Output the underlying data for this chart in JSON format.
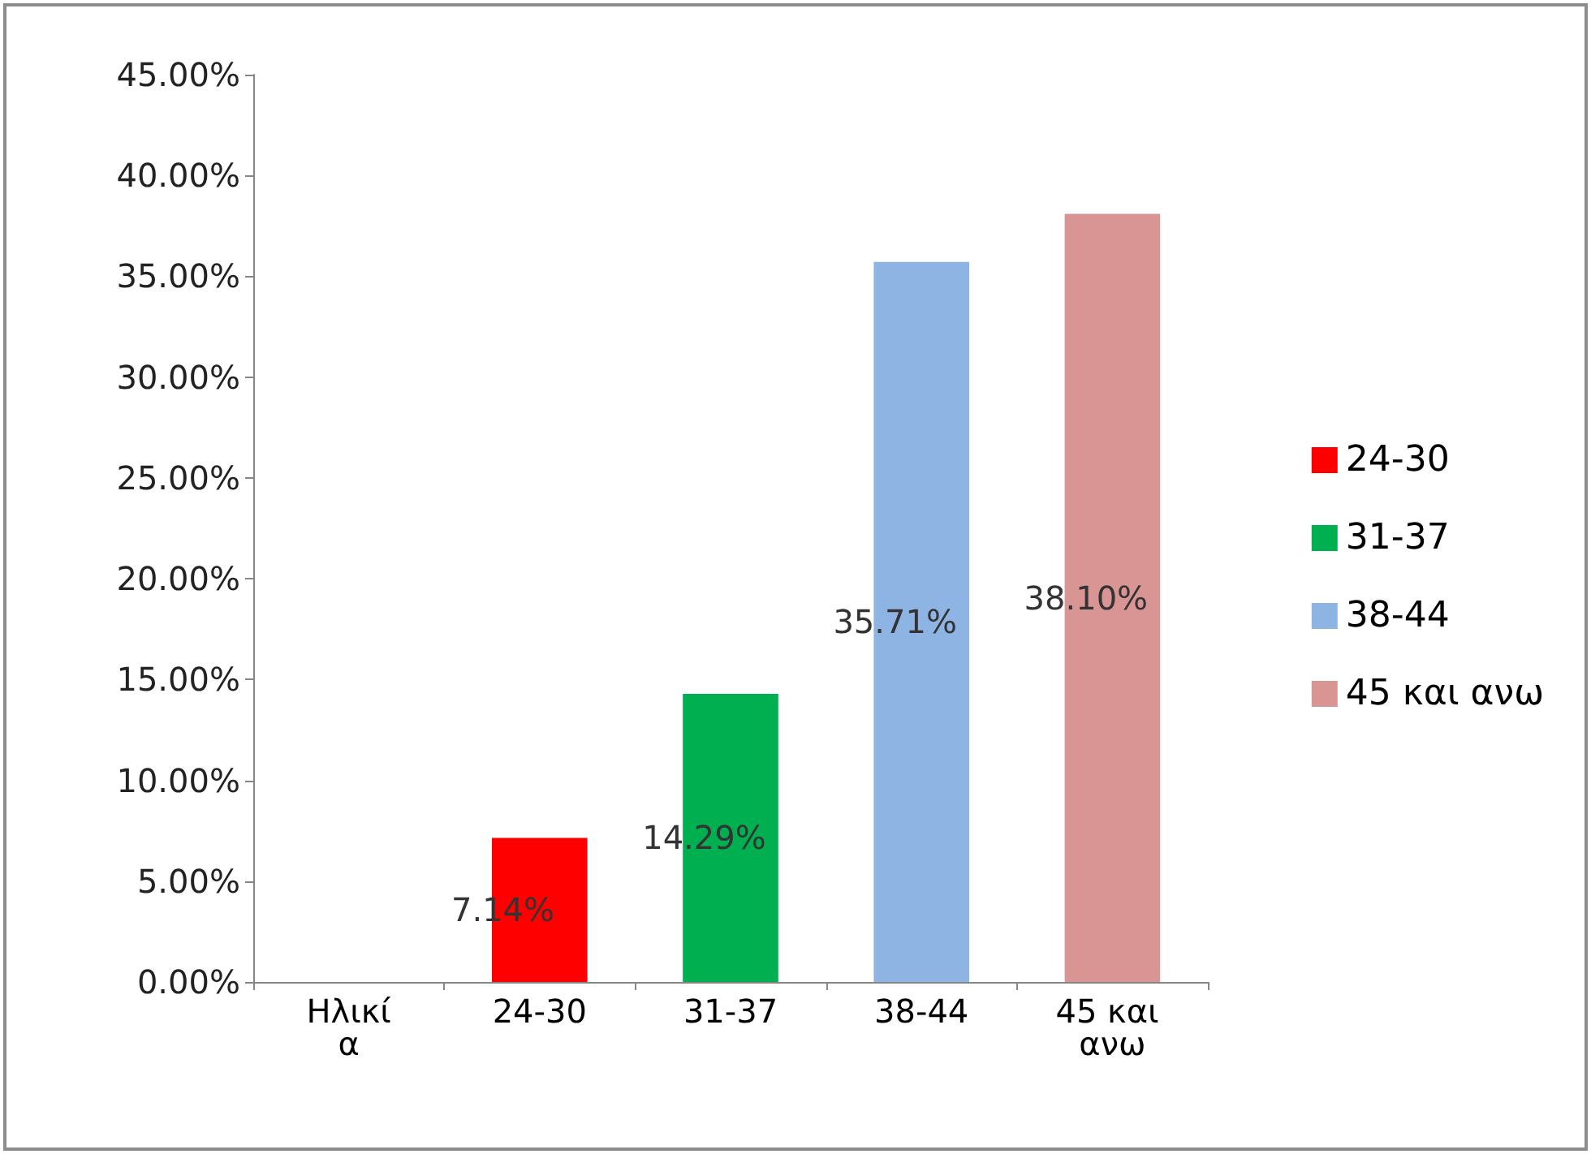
{
  "chart_data": {
    "type": "bar",
    "stacked": true,
    "categories": [
      "Ηλικία",
      "24-30",
      "31-37",
      "38-44",
      "45 και ανω"
    ],
    "series": [
      {
        "name": "24-30",
        "color": "#ff0000",
        "values": [
          null,
          7.14,
          null,
          null,
          null
        ],
        "value_labels": [
          null,
          "7.14%",
          null,
          null,
          null
        ]
      },
      {
        "name": "31-37",
        "color": "#00b050",
        "values": [
          null,
          null,
          14.29,
          null,
          null
        ],
        "value_labels": [
          null,
          null,
          "14.29%",
          null,
          null
        ]
      },
      {
        "name": "38-44",
        "color": "#8eb4e3",
        "values": [
          null,
          null,
          null,
          35.71,
          null
        ],
        "value_labels": [
          null,
          null,
          null,
          "35.71%",
          null
        ]
      },
      {
        "name": "45 και ανω",
        "color": "#d99594",
        "values": [
          null,
          null,
          null,
          null,
          38.1
        ],
        "value_labels": [
          null,
          null,
          null,
          null,
          "38.10%"
        ]
      }
    ],
    "ylim": [
      0,
      45
    ],
    "yticks": [
      {
        "value": 0,
        "label": "0.00%"
      },
      {
        "value": 5,
        "label": "5.00%"
      },
      {
        "value": 10,
        "label": "10.00%"
      },
      {
        "value": 15,
        "label": "15.00%"
      },
      {
        "value": 20,
        "label": "20.00%"
      },
      {
        "value": 25,
        "label": "25.00%"
      },
      {
        "value": 30,
        "label": "30.00%"
      },
      {
        "value": 35,
        "label": "35.00%"
      },
      {
        "value": 40,
        "label": "40.00%"
      },
      {
        "value": 45,
        "label": "45.00%"
      }
    ],
    "grid": false,
    "legend": "right"
  }
}
